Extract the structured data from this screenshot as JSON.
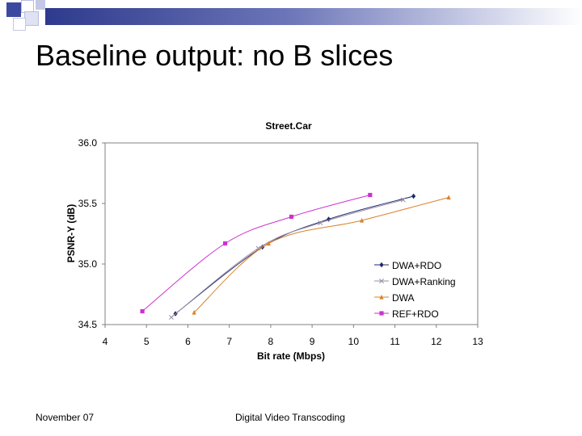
{
  "slide": {
    "title": "Baseline output: no B slices",
    "footer_left": "November 07",
    "footer_center": "Digital Video Transcoding",
    "accent_color": "#2e3a8c"
  },
  "chart_data": {
    "type": "line",
    "title": "Street.Car",
    "xlabel": "Bit rate (Mbps)",
    "ylabel": "PSNR-Y (dB)",
    "xlim": [
      4,
      13
    ],
    "ylim": [
      34.5,
      36.0
    ],
    "xticks": [
      "4",
      "5",
      "6",
      "7",
      "8",
      "9",
      "10",
      "11",
      "12",
      "13"
    ],
    "yticks": [
      "34.5",
      "35.0",
      "35.5",
      "36.0"
    ],
    "grid": false,
    "legend_position": "bottom-right",
    "series": [
      {
        "name": "DWA+RDO",
        "color": "#1f2a6e",
        "marker": "diamond",
        "x": [
          5.7,
          7.8,
          9.4,
          11.45
        ],
        "y": [
          34.59,
          35.14,
          35.37,
          35.56
        ]
      },
      {
        "name": "DWA+Ranking",
        "color": "#9b8ea8",
        "marker": "x",
        "x": [
          5.6,
          7.7,
          9.2,
          11.2
        ],
        "y": [
          34.56,
          35.13,
          35.34,
          35.53
        ]
      },
      {
        "name": "DWA",
        "color": "#d9822b",
        "marker": "triangle",
        "x": [
          6.15,
          7.95,
          10.2,
          12.3
        ],
        "y": [
          34.6,
          35.17,
          35.36,
          35.55
        ]
      },
      {
        "name": "REF+RDO",
        "color": "#cc33cc",
        "marker": "square",
        "x": [
          4.9,
          6.9,
          8.5,
          10.4
        ],
        "y": [
          34.61,
          35.17,
          35.39,
          35.57
        ]
      }
    ]
  }
}
